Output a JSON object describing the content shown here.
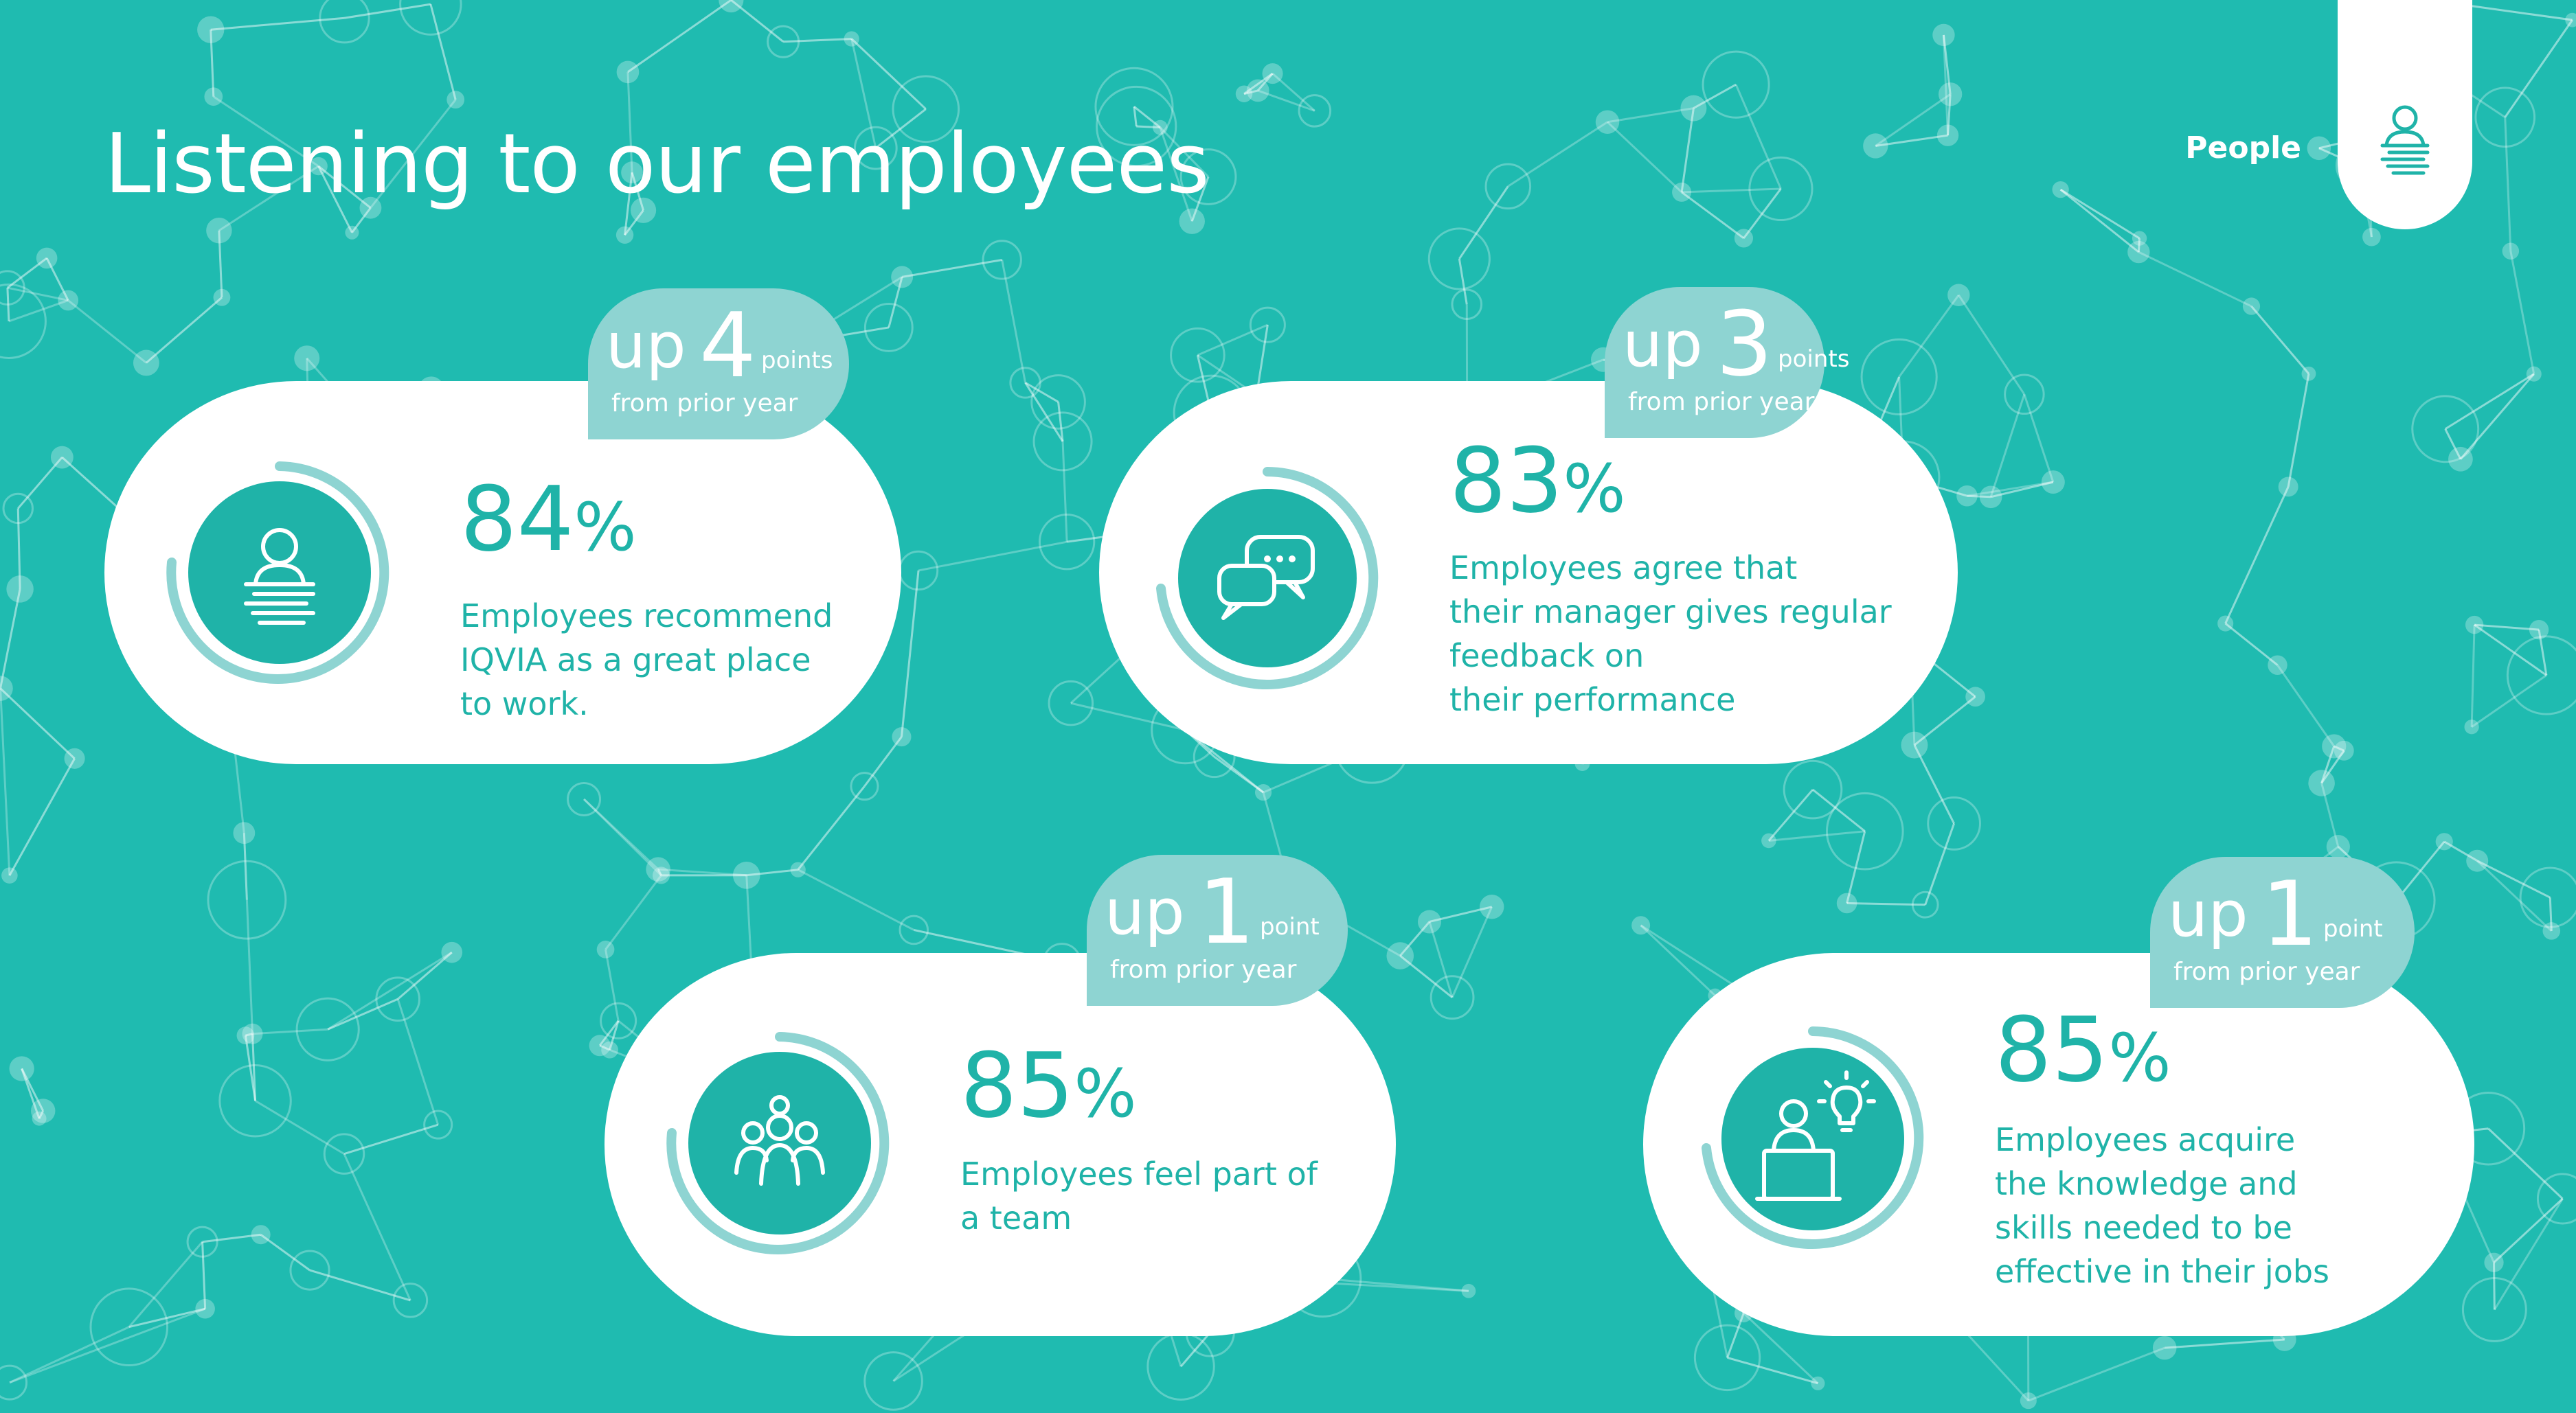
{
  "page": {
    "title": "Listening to our employees",
    "section_label": "People",
    "colors": {
      "background": "#1fbbb0",
      "accent": "#1fb3a8",
      "ring": "#8ed4d2",
      "card": "#ffffff"
    }
  },
  "cards": [
    {
      "icon": "person-typing-icon",
      "percent": "84",
      "percent_symbol": "%",
      "description": "Employees recommend\nIQVIA as a great place\nto work.",
      "badge": {
        "up": "up",
        "number": "4",
        "unit": "points",
        "sub": "from prior year"
      }
    },
    {
      "icon": "chat-bubbles-icon",
      "percent": "83",
      "percent_symbol": "%",
      "description": "Employees agree that\ntheir manager gives regular\nfeedback on\ntheir performance",
      "badge": {
        "up": "up",
        "number": "3",
        "unit": "points",
        "sub": "from prior year"
      }
    },
    {
      "icon": "team-group-icon",
      "percent": "85",
      "percent_symbol": "%",
      "description": "Employees feel part of\na team",
      "badge": {
        "up": "up",
        "number": "1",
        "unit": "point",
        "sub": "from prior year"
      }
    },
    {
      "icon": "presenter-idea-icon",
      "percent": "85",
      "percent_symbol": "%",
      "description": "Employees acquire\nthe knowledge and\nskills needed to be\neffective in their jobs",
      "badge": {
        "up": "up",
        "number": "1",
        "unit": "point",
        "sub": "from prior year"
      }
    }
  ]
}
